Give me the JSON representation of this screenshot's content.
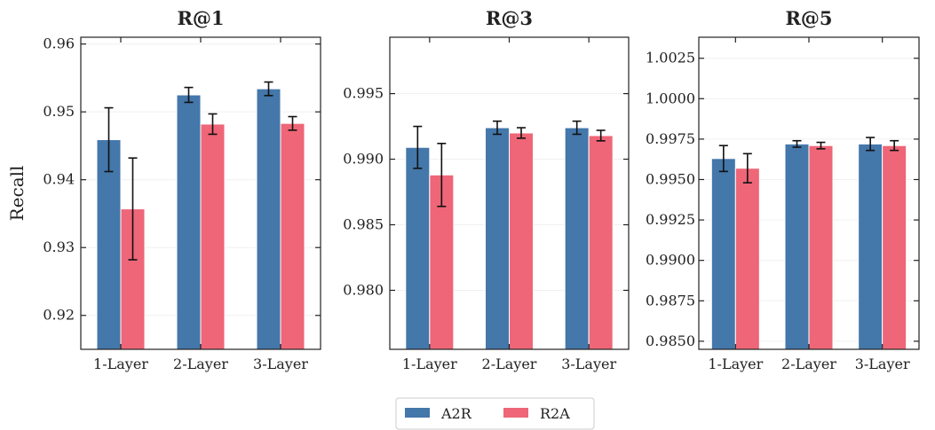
{
  "chart_data": [
    {
      "type": "bar",
      "title": "R@1",
      "ylabel": "Recall",
      "categories": [
        "1-Layer",
        "2-Layer",
        "3-Layer"
      ],
      "ylim": [
        0.915,
        0.961
      ],
      "yticks": [
        0.92,
        0.93,
        0.94,
        0.95,
        0.96
      ],
      "ytick_labels": [
        "0.92",
        "0.93",
        "0.94",
        "0.95",
        "0.96"
      ],
      "yaxis_side": "left",
      "series": [
        {
          "name": "A2R",
          "values": [
            0.9459,
            0.9525,
            0.9534
          ],
          "errors": [
            0.0047,
            0.0011,
            0.001
          ]
        },
        {
          "name": "R2A",
          "values": [
            0.9357,
            0.9482,
            0.9483
          ],
          "errors": [
            0.0075,
            0.0015,
            0.001
          ]
        }
      ]
    },
    {
      "type": "bar",
      "title": "R@3",
      "ylabel": "",
      "categories": [
        "1-Layer",
        "2-Layer",
        "3-Layer"
      ],
      "ylim": [
        0.9755,
        0.9993
      ],
      "yticks": [
        0.98,
        0.985,
        0.99,
        0.995
      ],
      "ytick_labels": [
        "0.980",
        "0.985",
        "0.990",
        "0.995"
      ],
      "yaxis_side": "left",
      "series": [
        {
          "name": "A2R",
          "values": [
            0.9909,
            0.9924,
            0.9924
          ],
          "errors": [
            0.0016,
            0.0005,
            0.0005
          ]
        },
        {
          "name": "R2A",
          "values": [
            0.9888,
            0.992,
            0.9918
          ],
          "errors": [
            0.0024,
            0.0004,
            0.0004
          ]
        }
      ]
    },
    {
      "type": "bar",
      "title": "R@5",
      "ylabel": "",
      "categories": [
        "1-Layer",
        "2-Layer",
        "3-Layer"
      ],
      "ylim": [
        0.9845,
        1.0038
      ],
      "yticks": [
        0.985,
        0.9875,
        0.99,
        0.9925,
        0.995,
        0.9975,
        1.0,
        1.0025
      ],
      "ytick_labels": [
        "0.9850",
        "0.9875",
        "0.9900",
        "0.9925",
        "0.9950",
        "0.9975",
        "1.0000",
        "1.0025"
      ],
      "yaxis_side": "right",
      "series": [
        {
          "name": "A2R",
          "values": [
            0.9963,
            0.9972,
            0.9972
          ],
          "errors": [
            0.0008,
            0.0002,
            0.0004
          ]
        },
        {
          "name": "R2A",
          "values": [
            0.9957,
            0.9971,
            0.9971
          ],
          "errors": [
            0.0009,
            0.0002,
            0.0003
          ]
        }
      ]
    }
  ],
  "legend": {
    "placement": "bottom-center",
    "items": [
      {
        "label": "A2R",
        "color": "#4477aa"
      },
      {
        "label": "R2A",
        "color": "#ee6677"
      }
    ]
  }
}
